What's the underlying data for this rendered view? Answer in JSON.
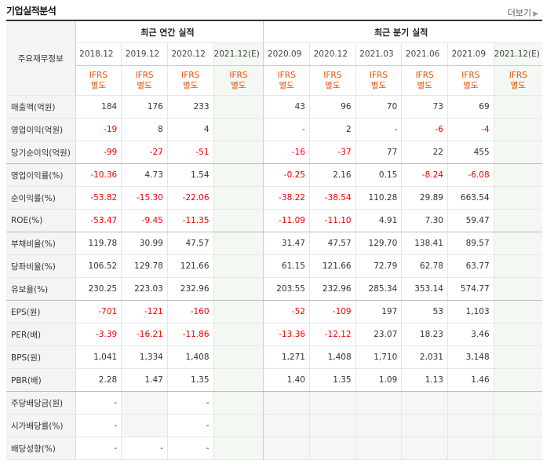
{
  "title": "기업실적분석",
  "more_label": "더보기",
  "main_header_label": "주요재무정보",
  "annual_group_label": "최근 연간 실적",
  "quarter_group_label": "최근 분기 실적",
  "annual_periods": [
    "2018.12",
    "2019.12",
    "2020.12",
    "2021.12(E)"
  ],
  "quarter_periods": [
    "2020.09",
    "2020.12",
    "2021.03",
    "2021.06",
    "2021.09",
    "2021.12(E)"
  ],
  "ifrs_line1": "IFRS",
  "ifrs_line2": "별도",
  "rows": [
    {
      "label": "매출액(억원)",
      "annual": [
        "184",
        "176",
        "233",
        ""
      ],
      "quarter": [
        "43",
        "96",
        "70",
        "73",
        "69",
        ""
      ]
    },
    {
      "label": "영업이익(억원)",
      "annual": [
        "-19",
        "8",
        "4",
        ""
      ],
      "quarter": [
        "-",
        "2",
        "-",
        "-6",
        "-4",
        ""
      ]
    },
    {
      "label": "당기순이익(억원)",
      "annual": [
        "-99",
        "-27",
        "-51",
        ""
      ],
      "quarter": [
        "-16",
        "-37",
        "77",
        "22",
        "455",
        ""
      ]
    },
    {
      "label": "영업이익률(%)",
      "annual": [
        "-10.36",
        "4.73",
        "1.54",
        ""
      ],
      "quarter": [
        "-0.25",
        "2.16",
        "0.15",
        "-8.24",
        "-6.08",
        ""
      ]
    },
    {
      "label": "순이익률(%)",
      "annual": [
        "-53.82",
        "-15.30",
        "-22.06",
        ""
      ],
      "quarter": [
        "-38.22",
        "-38.54",
        "110.28",
        "29.89",
        "663.54",
        ""
      ]
    },
    {
      "label": "ROE(%)",
      "annual": [
        "-53.47",
        "-9.45",
        "-11.35",
        ""
      ],
      "quarter": [
        "-11.09",
        "-11.10",
        "4.91",
        "7.30",
        "59.47",
        ""
      ]
    },
    {
      "label": "부채비율(%)",
      "annual": [
        "119.78",
        "30.99",
        "47.57",
        ""
      ],
      "quarter": [
        "31.47",
        "47.57",
        "129.70",
        "138.41",
        "89.57",
        ""
      ]
    },
    {
      "label": "당좌비율(%)",
      "annual": [
        "106.52",
        "129.78",
        "121.66",
        ""
      ],
      "quarter": [
        "61.15",
        "121.66",
        "72.79",
        "62.78",
        "63.77",
        ""
      ]
    },
    {
      "label": "유보율(%)",
      "annual": [
        "230.25",
        "223.03",
        "232.96",
        ""
      ],
      "quarter": [
        "203.55",
        "232.96",
        "285.34",
        "353.14",
        "574.77",
        ""
      ]
    },
    {
      "label": "EPS(원)",
      "annual": [
        "-701",
        "-121",
        "-160",
        ""
      ],
      "quarter": [
        "-52",
        "-109",
        "197",
        "53",
        "1,103",
        ""
      ]
    },
    {
      "label": "PER(배)",
      "annual": [
        "-3.39",
        "-16.21",
        "-11.86",
        ""
      ],
      "quarter": [
        "-13.36",
        "-12.12",
        "23.07",
        "18.23",
        "3.46",
        ""
      ]
    },
    {
      "label": "BPS(원)",
      "annual": [
        "1,041",
        "1,334",
        "1,408",
        ""
      ],
      "quarter": [
        "1,271",
        "1,408",
        "1,710",
        "2,031",
        "3,148",
        ""
      ]
    },
    {
      "label": "PBR(배)",
      "annual": [
        "2.28",
        "1.47",
        "1.35",
        ""
      ],
      "quarter": [
        "1.40",
        "1.35",
        "1.09",
        "1.13",
        "1.46",
        ""
      ]
    },
    {
      "label": "주당배당금(원)",
      "annual": [
        "-",
        "",
        "-",
        ""
      ],
      "quarter": [
        "",
        "",
        "",
        "",
        "",
        ""
      ]
    },
    {
      "label": "시가배당률(%)",
      "annual": [
        "-",
        "",
        "-",
        ""
      ],
      "quarter": [
        "",
        "",
        "",
        "",
        "",
        ""
      ]
    },
    {
      "label": "배당성향(%)",
      "annual": [
        "-",
        "-",
        "-",
        ""
      ],
      "quarter": [
        "",
        "",
        "",
        "",
        "",
        ""
      ]
    }
  ],
  "colors": {
    "negative": "#ee0000",
    "ifrs": "#e2530a",
    "estimate": "#2f7d32"
  }
}
